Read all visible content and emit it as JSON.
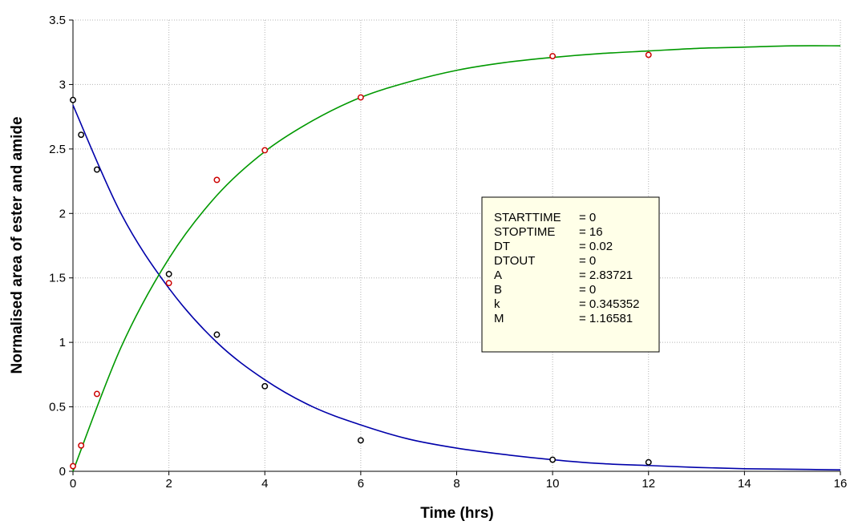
{
  "chart_data": {
    "type": "scatter",
    "title": "",
    "xlabel": "Time (hrs)",
    "ylabel": "Normalised area of ester and amide",
    "xlim": [
      0,
      16
    ],
    "ylim": [
      0,
      3.5
    ],
    "grid": true,
    "x_ticks": [
      0,
      2,
      4,
      6,
      8,
      10,
      12,
      14,
      16
    ],
    "y_ticks": [
      0,
      0.5,
      1,
      1.5,
      2,
      2.5,
      3,
      3.5
    ],
    "series": [
      {
        "kind": "points",
        "color": "#000000",
        "points": [
          [
            0,
            2.88
          ],
          [
            0.17,
            2.61
          ],
          [
            0.5,
            2.34
          ],
          [
            2,
            1.53
          ],
          [
            3,
            1.06
          ],
          [
            4,
            0.66
          ],
          [
            6,
            0.24
          ],
          [
            10,
            0.09
          ],
          [
            12,
            0.07
          ]
        ]
      },
      {
        "kind": "points",
        "color": "#cc0000",
        "points": [
          [
            0,
            0.04
          ],
          [
            0.17,
            0.2
          ],
          [
            0.5,
            0.6
          ],
          [
            2,
            1.46
          ],
          [
            3,
            2.26
          ],
          [
            4,
            2.49
          ],
          [
            6,
            2.9
          ],
          [
            10,
            3.22
          ],
          [
            12,
            3.23
          ]
        ]
      },
      {
        "kind": "fit-curve",
        "color": "#0000aa",
        "model": "A*exp(-k*t)",
        "points": [
          [
            0,
            2.84
          ],
          [
            1,
            2.0
          ],
          [
            2,
            1.42
          ],
          [
            3,
            1.0
          ],
          [
            4,
            0.71
          ],
          [
            5,
            0.5
          ],
          [
            6,
            0.36
          ],
          [
            7,
            0.25
          ],
          [
            8,
            0.18
          ],
          [
            9,
            0.13
          ],
          [
            10,
            0.09
          ],
          [
            11,
            0.06
          ],
          [
            12,
            0.045
          ],
          [
            13,
            0.03
          ],
          [
            14,
            0.02
          ],
          [
            15,
            0.016
          ],
          [
            16,
            0.011
          ]
        ]
      },
      {
        "kind": "fit-curve",
        "color": "#009900",
        "model": "B*exp(-k*t) + A*(1-exp(-k*t))*(1+M)",
        "points": [
          [
            0,
            0.0
          ],
          [
            1,
            0.96
          ],
          [
            2,
            1.65
          ],
          [
            3,
            2.14
          ],
          [
            4,
            2.48
          ],
          [
            5,
            2.72
          ],
          [
            6,
            2.9
          ],
          [
            7,
            3.02
          ],
          [
            8,
            3.11
          ],
          [
            9,
            3.17
          ],
          [
            10,
            3.21
          ],
          [
            11,
            3.24
          ],
          [
            12,
            3.26
          ],
          [
            13,
            3.28
          ],
          [
            14,
            3.29
          ],
          [
            15,
            3.3
          ],
          [
            16,
            3.3
          ]
        ]
      }
    ],
    "annotation_box": {
      "position": "center-right",
      "rows": [
        {
          "name": "STARTTIME",
          "value": "= 0"
        },
        {
          "name": "STOPTIME",
          "value": "= 16"
        },
        {
          "name": "DT",
          "value": "= 0.02"
        },
        {
          "name": "DTOUT",
          "value": "= 0"
        },
        {
          "name": "A",
          "value": "= 2.83721"
        },
        {
          "name": "B",
          "value": "= 0"
        },
        {
          "name": "k",
          "value": "= 0.345352"
        },
        {
          "name": "M",
          "value": "= 1.16581"
        }
      ]
    }
  }
}
